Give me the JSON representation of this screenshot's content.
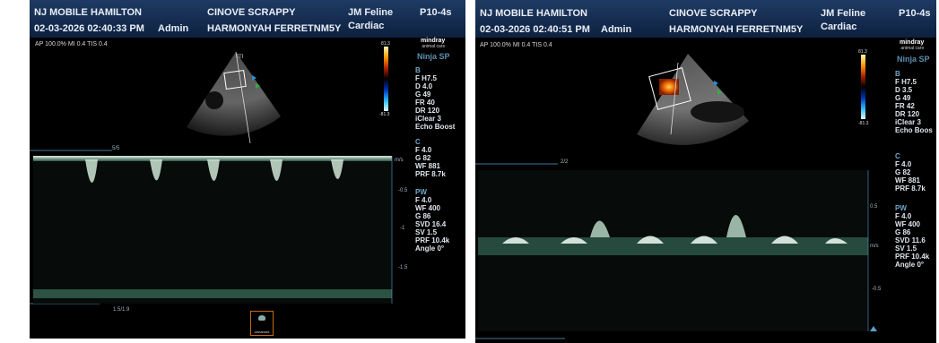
{
  "panels": [
    {
      "hospital": "NJ MOBILE HAMILTON",
      "datetime": "02-03-2026  02:40:33 PM",
      "user": "Admin",
      "patient_name": "CINOVE SCRAPPY",
      "patient_id": "HARMONYAH FERRETNM5Y",
      "doctor": "JM Feline",
      "exam": "Cardiac",
      "probe": "P10-4s",
      "ap_line": "AP 100.0%  MI 0.4  TIS 0.4",
      "brand": "mindray",
      "brand_sub": "animal care",
      "preset": "Ninja SP",
      "color_max": "81.3",
      "color_min": "-81.3",
      "params_b": [
        "B",
        "F H7.5",
        "D 4.0",
        "G 49",
        "FR 40",
        "DR 120",
        "iClear 3",
        "Echo Boost"
      ],
      "params_c": [
        "C",
        "F 4.0",
        "G 82",
        "WF 881",
        "PRF 8.7k"
      ],
      "params_pw": [
        "PW",
        "F 4.0",
        "WF 400",
        "G 86",
        "SVD 16.4",
        "SV 1.5",
        "PRF 10.4k",
        "Angle 0°"
      ],
      "scale_unit": "m/s",
      "scale_labels": [
        "-0.5",
        "-1",
        "-1.5"
      ],
      "time_label_top": "5/5",
      "time_label_bottom": "1.5/1.9",
      "thumb_label": "unnamed"
    },
    {
      "hospital": "NJ MOBILE HAMILTON",
      "datetime": "02-03-2026  02:40:51 PM",
      "user": "Admin",
      "patient_name": "CINOVE SCRAPPY",
      "patient_id": "HARMONYAH FERRETNM5Y",
      "doctor": "JM Feline",
      "exam": "Cardiac",
      "probe": "P10-4s",
      "ap_line": "AP 100.0%  MI 0.4  TIS 0.4",
      "brand": "mindray",
      "brand_sub": "animal care",
      "preset": "Ninja SP",
      "color_max": "81.3",
      "color_min": "-81.3",
      "params_b": [
        "B",
        "F H7.5",
        "D 3.5",
        "G 49",
        "FR 42",
        "DR 120",
        "iClear 3",
        "Echo Boos"
      ],
      "params_c": [
        "C",
        "F 4.0",
        "G 82",
        "WF 881",
        "PRF 8.7k"
      ],
      "params_pw": [
        "PW",
        "F 4.0",
        "WF 400",
        "G 86",
        "SVD 11.6",
        "SV 1.5",
        "PRF 10.4k",
        "Angle 0°"
      ],
      "scale_unit": "m/s",
      "scale_labels": [
        "0.5",
        "-0.5"
      ],
      "time_label_top": "2/2",
      "time_label_bottom": ""
    }
  ]
}
